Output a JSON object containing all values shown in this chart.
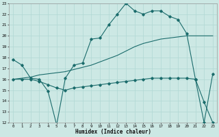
{
  "xlabel": "Humidex (Indice chaleur)",
  "bg_color": "#cce8e4",
  "grid_color": "#b0d8d4",
  "line_color": "#1a6b6b",
  "xlim": [
    -0.5,
    23.5
  ],
  "ylim": [
    12,
    23
  ],
  "xticks": [
    0,
    1,
    2,
    3,
    4,
    5,
    6,
    7,
    8,
    9,
    10,
    11,
    12,
    13,
    14,
    15,
    16,
    17,
    18,
    19,
    20,
    21,
    22,
    23
  ],
  "yticks": [
    12,
    13,
    14,
    15,
    16,
    17,
    18,
    19,
    20,
    21,
    22,
    23
  ],
  "series1_x": [
    0,
    1,
    2,
    3,
    4,
    5,
    6,
    7,
    8,
    9,
    10,
    11,
    12,
    13,
    14,
    15,
    16,
    17,
    18,
    19,
    20,
    21,
    22,
    23
  ],
  "series1_y": [
    17.8,
    17.3,
    16.1,
    16.0,
    14.9,
    11.8,
    16.1,
    17.3,
    17.5,
    19.7,
    19.8,
    21.0,
    22.0,
    23.0,
    22.3,
    22.0,
    22.3,
    22.3,
    21.8,
    21.5,
    20.2,
    16.0,
    13.9,
    12.0
  ],
  "series2_x": [
    0,
    1,
    2,
    3,
    4,
    5,
    6,
    7,
    8,
    9,
    10,
    11,
    12,
    13,
    14,
    15,
    16,
    17,
    18,
    19,
    20,
    21,
    22,
    23
  ],
  "series2_y": [
    16.0,
    16.0,
    16.0,
    15.8,
    15.5,
    15.2,
    15.0,
    15.2,
    15.3,
    15.4,
    15.5,
    15.6,
    15.7,
    15.8,
    15.9,
    16.0,
    16.1,
    16.1,
    16.1,
    16.1,
    16.1,
    16.0,
    12.0,
    16.5
  ],
  "series3_x": [
    0,
    1,
    2,
    3,
    4,
    5,
    6,
    7,
    8,
    9,
    10,
    11,
    12,
    13,
    14,
    15,
    16,
    17,
    18,
    19,
    20,
    21,
    22,
    23
  ],
  "series3_y": [
    16.0,
    16.1,
    16.2,
    16.4,
    16.5,
    16.6,
    16.7,
    16.9,
    17.1,
    17.3,
    17.6,
    17.9,
    18.2,
    18.6,
    19.0,
    19.3,
    19.5,
    19.7,
    19.8,
    19.9,
    20.0,
    20.0,
    20.0,
    20.0
  ]
}
